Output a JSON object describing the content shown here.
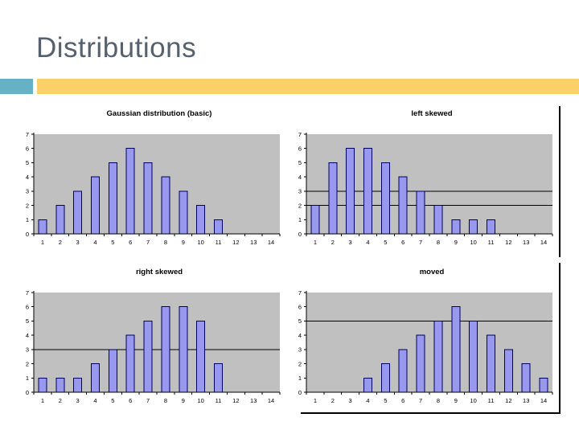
{
  "slide": {
    "title": "Distributions"
  },
  "theme": {
    "title_color": "#57616e",
    "accent_teal": "#67b1c6",
    "accent_yellow": "#fcd169",
    "plot_bg": "#c0c0c0",
    "bar_fill": "#9898ef",
    "bar_stroke": "#000060",
    "axis_color": "#000000",
    "ref_line_color": "#000000",
    "frame_border_color": "#000000",
    "label_color": "#000000"
  },
  "chart_data": [
    {
      "type": "bar",
      "title": "Gaussian distribution (basic)",
      "categories": [
        1,
        2,
        3,
        4,
        5,
        6,
        7,
        8,
        9,
        10,
        11,
        12,
        13,
        14
      ],
      "values": [
        1,
        2,
        3,
        4,
        5,
        6,
        5,
        4,
        3,
        2,
        1,
        0,
        0,
        0
      ],
      "xlabel": "",
      "ylabel": "",
      "ylim": [
        0,
        7
      ],
      "yticks": [
        0,
        1,
        2,
        3,
        4,
        5,
        6,
        7
      ],
      "ref_lines": [],
      "grid": false,
      "legend": false,
      "plot_background": "gray"
    },
    {
      "type": "bar",
      "title": "left skewed",
      "categories": [
        1,
        2,
        3,
        4,
        5,
        6,
        7,
        8,
        9,
        10,
        11,
        12,
        13,
        14
      ],
      "values": [
        2,
        5,
        6,
        6,
        5,
        4,
        3,
        2,
        1,
        1,
        1,
        0,
        0,
        0
      ],
      "xlabel": "",
      "ylabel": "",
      "ylim": [
        0,
        7
      ],
      "yticks": [
        0,
        1,
        2,
        3,
        4,
        5,
        6,
        7
      ],
      "ref_lines": [
        2,
        3
      ],
      "grid": false,
      "legend": false,
      "plot_background": "gray"
    },
    {
      "type": "bar",
      "title": "right skewed",
      "categories": [
        1,
        2,
        3,
        4,
        5,
        6,
        7,
        8,
        9,
        10,
        11,
        12,
        13,
        14
      ],
      "values": [
        1,
        1,
        1,
        2,
        3,
        4,
        5,
        6,
        6,
        5,
        2,
        0,
        0,
        0
      ],
      "xlabel": "",
      "ylabel": "",
      "ylim": [
        0,
        7
      ],
      "yticks": [
        0,
        1,
        2,
        3,
        4,
        5,
        6,
        7
      ],
      "ref_lines": [
        3
      ],
      "grid": false,
      "legend": false,
      "plot_background": "gray"
    },
    {
      "type": "bar",
      "title": "moved",
      "categories": [
        1,
        2,
        3,
        4,
        5,
        6,
        7,
        8,
        9,
        10,
        11,
        12,
        13,
        14
      ],
      "values": [
        0,
        0,
        0,
        1,
        2,
        3,
        4,
        5,
        6,
        5,
        4,
        3,
        2,
        1
      ],
      "xlabel": "",
      "ylabel": "",
      "ylim": [
        0,
        7
      ],
      "yticks": [
        0,
        1,
        2,
        3,
        4,
        5,
        6,
        7
      ],
      "ref_lines": [
        5
      ],
      "grid": false,
      "legend": false,
      "plot_background": "gray"
    }
  ]
}
